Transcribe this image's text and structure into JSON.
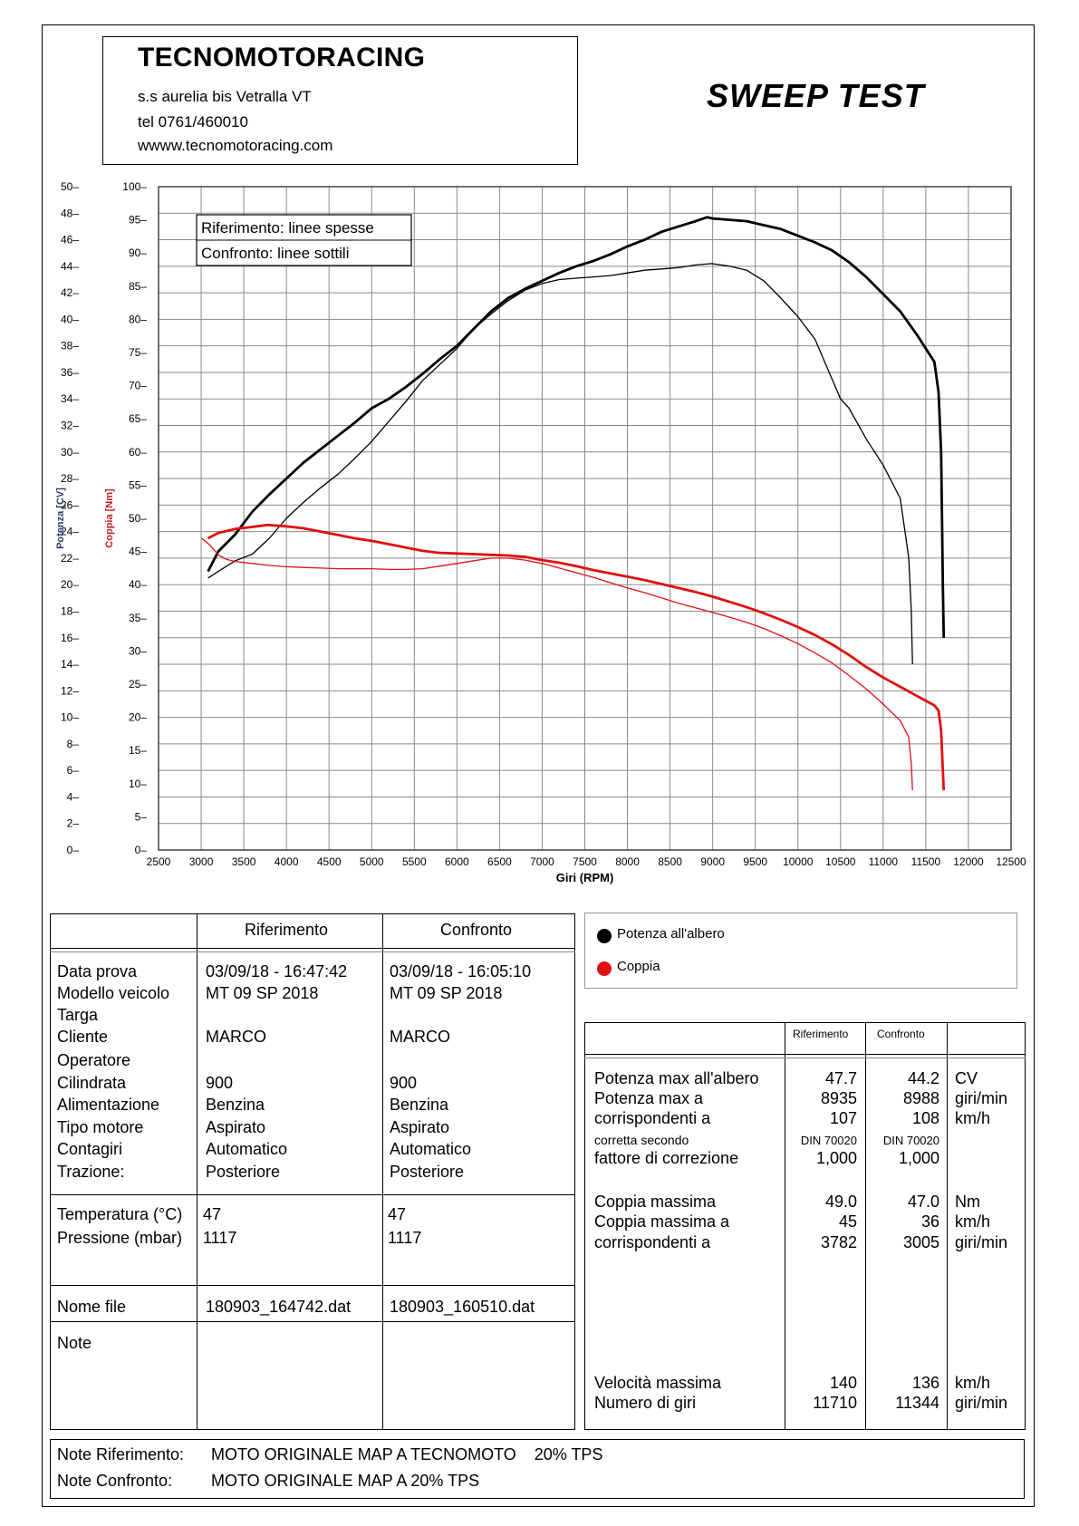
{
  "header": {
    "company": "TECNOMOTORACING",
    "address": "s.s aurelia bis  Vetralla  VT",
    "phone": "tel 0761/460010",
    "website": "wwww.tecnomotoracing.com",
    "test_title": "SWEEP TEST"
  },
  "chart_data": {
    "type": "line",
    "xlabel": "Giri (RPM)",
    "ylabel_left": "Potenza [CV]",
    "ylabel_right": "Coppia [Nm]",
    "xlim": [
      2500,
      12500
    ],
    "xticks": [
      2500,
      3000,
      3500,
      4000,
      4500,
      5000,
      5500,
      6000,
      6500,
      7000,
      7500,
      8000,
      8500,
      9000,
      9500,
      10000,
      10500,
      11000,
      11500,
      12000,
      12500
    ],
    "ylim_power": [
      0,
      50
    ],
    "yticks_power": [
      0,
      2,
      4,
      6,
      8,
      10,
      12,
      14,
      16,
      18,
      20,
      22,
      24,
      26,
      28,
      30,
      32,
      34,
      36,
      38,
      40,
      42,
      44,
      46,
      48,
      50
    ],
    "ylim_torque": [
      0,
      100
    ],
    "yticks_torque": [
      0,
      5,
      10,
      15,
      20,
      25,
      30,
      35,
      40,
      45,
      50,
      55,
      60,
      65,
      70,
      75,
      80,
      85,
      90,
      95,
      100
    ],
    "grid": true,
    "legend_box": [
      "Riferimento: linee spesse",
      "Confronto: linee sottili"
    ],
    "colors": {
      "power": "#000000",
      "torque": "#e01010"
    },
    "series": [
      {
        "name": "Potenza all'albero",
        "run": "Riferimento",
        "axis": "power",
        "x": [
          3080,
          3200,
          3400,
          3600,
          3800,
          4000,
          4200,
          4400,
          4600,
          4800,
          5000,
          5200,
          5400,
          5600,
          5800,
          6000,
          6200,
          6400,
          6600,
          6800,
          7000,
          7200,
          7400,
          7600,
          7800,
          8000,
          8200,
          8400,
          8600,
          8800,
          8935,
          9000,
          9200,
          9400,
          9600,
          9800,
          10000,
          10200,
          10400,
          10600,
          10800,
          11000,
          11200,
          11400,
          11600,
          11650,
          11680,
          11690,
          11700,
          11710
        ],
        "y": [
          21.0,
          22.5,
          23.8,
          25.5,
          26.8,
          28.0,
          29.2,
          30.2,
          31.2,
          32.2,
          33.3,
          34.0,
          34.9,
          35.9,
          37.0,
          38.0,
          39.3,
          40.6,
          41.6,
          42.3,
          42.9,
          43.5,
          44.0,
          44.4,
          44.9,
          45.5,
          46.0,
          46.6,
          47.0,
          47.4,
          47.7,
          47.6,
          47.5,
          47.4,
          47.1,
          46.8,
          46.3,
          45.8,
          45.2,
          44.3,
          43.2,
          41.9,
          40.6,
          38.8,
          36.8,
          34.5,
          30.0,
          25.0,
          20.0,
          16.0
        ]
      },
      {
        "name": "Potenza all'albero",
        "run": "Confronto",
        "axis": "power",
        "x": [
          3080,
          3200,
          3400,
          3600,
          3800,
          4000,
          4200,
          4400,
          4600,
          4800,
          5000,
          5200,
          5400,
          5600,
          5800,
          6000,
          6200,
          6400,
          6600,
          6800,
          7000,
          7200,
          7400,
          7600,
          7800,
          8000,
          8200,
          8400,
          8600,
          8800,
          8988,
          9200,
          9400,
          9600,
          9800,
          10000,
          10200,
          10400,
          10500,
          10600,
          10800,
          11000,
          11200,
          11300,
          11330,
          11344
        ],
        "y": [
          20.5,
          21.0,
          21.8,
          22.3,
          23.5,
          25.0,
          26.2,
          27.3,
          28.3,
          29.5,
          30.8,
          32.3,
          33.8,
          35.4,
          36.6,
          37.8,
          39.3,
          40.4,
          41.4,
          42.2,
          42.7,
          43.0,
          43.1,
          43.2,
          43.3,
          43.5,
          43.7,
          43.8,
          43.9,
          44.1,
          44.2,
          44.0,
          43.7,
          42.9,
          41.6,
          40.2,
          38.5,
          35.5,
          34.0,
          33.3,
          31.0,
          29.0,
          26.5,
          22.0,
          18.0,
          14.0
        ]
      },
      {
        "name": "Coppia",
        "run": "Riferimento",
        "axis": "torque",
        "x": [
          3080,
          3200,
          3400,
          3600,
          3782,
          4000,
          4200,
          4400,
          4600,
          4800,
          5000,
          5200,
          5400,
          5600,
          5800,
          6000,
          6200,
          6400,
          6600,
          6800,
          7000,
          7200,
          7400,
          7600,
          7800,
          8000,
          8200,
          8400,
          8600,
          8800,
          9000,
          9200,
          9400,
          9600,
          9800,
          10000,
          10200,
          10400,
          10600,
          10800,
          11000,
          11200,
          11400,
          11600,
          11650,
          11680,
          11700,
          11710
        ],
        "y": [
          47.0,
          47.8,
          48.4,
          48.7,
          49.0,
          48.8,
          48.5,
          48.0,
          47.5,
          47.0,
          46.6,
          46.1,
          45.6,
          45.1,
          44.8,
          44.7,
          44.6,
          44.5,
          44.4,
          44.2,
          43.7,
          43.3,
          42.8,
          42.2,
          41.7,
          41.2,
          40.7,
          40.1,
          39.5,
          38.9,
          38.2,
          37.4,
          36.6,
          35.7,
          34.7,
          33.6,
          32.4,
          31.0,
          29.4,
          27.6,
          26.0,
          24.6,
          23.2,
          21.8,
          21.0,
          18.0,
          12.0,
          9.0
        ]
      },
      {
        "name": "Coppia",
        "run": "Confronto",
        "axis": "torque",
        "x": [
          3005,
          3100,
          3200,
          3300,
          3400,
          3600,
          3800,
          4000,
          4200,
          4400,
          4600,
          4800,
          5000,
          5200,
          5400,
          5600,
          5800,
          6000,
          6200,
          6400,
          6600,
          6800,
          7000,
          7200,
          7400,
          7600,
          7800,
          8000,
          8200,
          8400,
          8600,
          8800,
          9000,
          9200,
          9400,
          9600,
          9800,
          10000,
          10200,
          10400,
          10600,
          10800,
          11000,
          11200,
          11300,
          11330,
          11344
        ],
        "y": [
          47.0,
          46.0,
          44.5,
          43.8,
          43.5,
          43.2,
          42.9,
          42.7,
          42.6,
          42.5,
          42.4,
          42.4,
          42.4,
          42.3,
          42.3,
          42.4,
          42.8,
          43.2,
          43.6,
          44.0,
          44.0,
          43.7,
          43.2,
          42.5,
          41.8,
          41.1,
          40.3,
          39.5,
          38.8,
          38.0,
          37.2,
          36.5,
          35.8,
          35.1,
          34.3,
          33.4,
          32.3,
          31.1,
          29.7,
          28.2,
          26.3,
          24.3,
          22.0,
          19.5,
          17.0,
          13.0,
          9.0
        ]
      }
    ]
  },
  "legend": {
    "power": "Potenza all'albero",
    "torque": "Coppia"
  },
  "left_table": {
    "col_ref": "Riferimento",
    "col_conf": "Confronto",
    "rows": [
      {
        "label": "Data prova",
        "ref": "03/09/18 - 16:47:42",
        "conf": "03/09/18 - 16:05:10"
      },
      {
        "label": "Modello veicolo",
        "ref": "MT 09 SP 2018",
        "conf": "MT 09 SP 2018"
      },
      {
        "label": "Targa",
        "ref": "",
        "conf": ""
      },
      {
        "label": "Cliente",
        "ref": "MARCO",
        "conf": "MARCO"
      },
      {
        "label": "Operatore",
        "ref": "",
        "conf": ""
      },
      {
        "label": "Cilindrata",
        "ref": "900",
        "conf": "900"
      },
      {
        "label": "Alimentazione",
        "ref": "Benzina",
        "conf": "Benzina"
      },
      {
        "label": "Tipo motore",
        "ref": "Aspirato",
        "conf": "Aspirato"
      },
      {
        "label": "Contagiri",
        "ref": "Automatico",
        "conf": "Automatico"
      },
      {
        "label": "Trazione:",
        "ref": "Posteriore",
        "conf": "Posteriore"
      }
    ],
    "env_rows": [
      {
        "label": "Temperatura (°C)",
        "ref": "47",
        "conf": "47"
      },
      {
        "label": "Pressione (mbar)",
        "ref": "1117",
        "conf": "1117"
      }
    ],
    "file_label": "Nome file",
    "file_ref": "180903_164742.dat",
    "file_conf": "180903_160510.dat",
    "note_label": "Note"
  },
  "right_table": {
    "col_ref": "Riferimento",
    "col_conf": "Confronto",
    "rows": [
      {
        "label": "Potenza max all'albero",
        "ref": "47.7",
        "conf": "44.2",
        "unit": "CV"
      },
      {
        "label": "Potenza max a",
        "ref": "8935",
        "conf": "8988",
        "unit": "giri/min"
      },
      {
        "label": "corrispondenti a",
        "ref": "107",
        "conf": "108",
        "unit": "km/h"
      },
      {
        "label": "corretta secondo",
        "ref": "DIN 70020",
        "conf": "DIN 70020",
        "unit": ""
      },
      {
        "label": "fattore di correzione",
        "ref": "1,000",
        "conf": "1,000",
        "unit": ""
      },
      {
        "label": "Coppia massima",
        "ref": "49.0",
        "conf": "47.0",
        "unit": "Nm"
      },
      {
        "label": "Coppia massima a",
        "ref": "45",
        "conf": "36",
        "unit": "km/h"
      },
      {
        "label": "corrispondenti a",
        "ref": "3782",
        "conf": "3005",
        "unit": "giri/min"
      },
      {
        "label": "Velocità massima",
        "ref": "140",
        "conf": "136",
        "unit": "km/h"
      },
      {
        "label": "Numero di giri",
        "ref": "11710",
        "conf": "11344",
        "unit": "giri/min"
      }
    ]
  },
  "notes": {
    "ref_label": "Note Riferimento:",
    "ref_text": "MOTO ORIGINALE MAP A TECNOMOTO    20% TPS",
    "conf_label": "Note Confronto:",
    "conf_text": "MOTO ORIGINALE MAP A 20% TPS"
  }
}
